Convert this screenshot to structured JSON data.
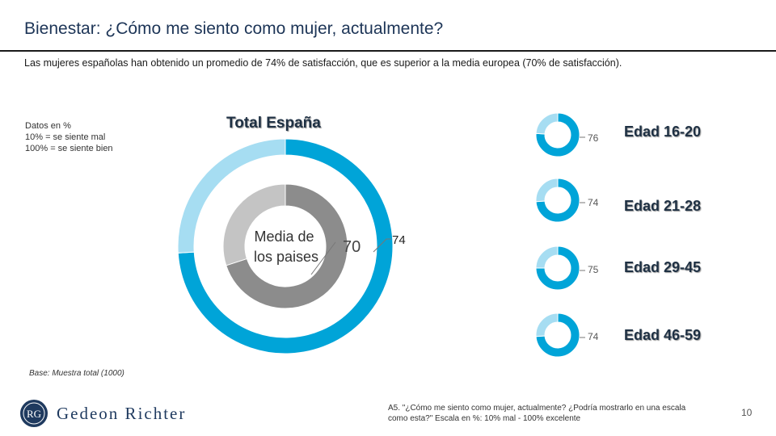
{
  "header": {
    "title": "Bienestar: ¿Cómo me siento como mujer, actualmente?",
    "subtitle": "Las mujeres españolas han obtenido un promedio de 74% de satisfacción, que es superior a la media europea (70% de satisfacción)."
  },
  "notes": [
    "Datos en %",
    "10% = se siente mal",
    "100% = se siente bien"
  ],
  "colors": {
    "dark_blue": "#00a4d8",
    "light_blue": "#a6ddf2",
    "dark_gray": "#8c8c8c",
    "light_gray": "#c4c4c4",
    "title_navy": "#1d3557"
  },
  "chart_data": [
    {
      "type": "pie",
      "title": "Total España",
      "variant": "nested-donut",
      "series": [
        {
          "name": "Total España",
          "values": [
            74,
            26
          ],
          "label": "74"
        },
        {
          "name": "Media de los paises",
          "values": [
            70,
            30
          ],
          "label": "70"
        }
      ],
      "center_label": "Media de los paises",
      "center_label_lines": [
        "Media de",
        "los paises"
      ]
    },
    {
      "type": "pie",
      "variant": "donut-small-multiples",
      "categories": [
        "Edad 16-20",
        "Edad 21-28",
        "Edad 29-45",
        "Edad 46-59"
      ],
      "values": [
        76,
        74,
        75,
        74
      ]
    }
  ],
  "footer": {
    "base": "Base: Muestra total (1000)",
    "question": "A5. \"¿Cómo me siento como mujer, actualmente? ¿Podría mostrarlo en una escala como esta?\" Escala en %: 10% mal - 100% excelente",
    "page_number": "10",
    "brand": "Gedeon Richter",
    "logo_text": "RG"
  }
}
